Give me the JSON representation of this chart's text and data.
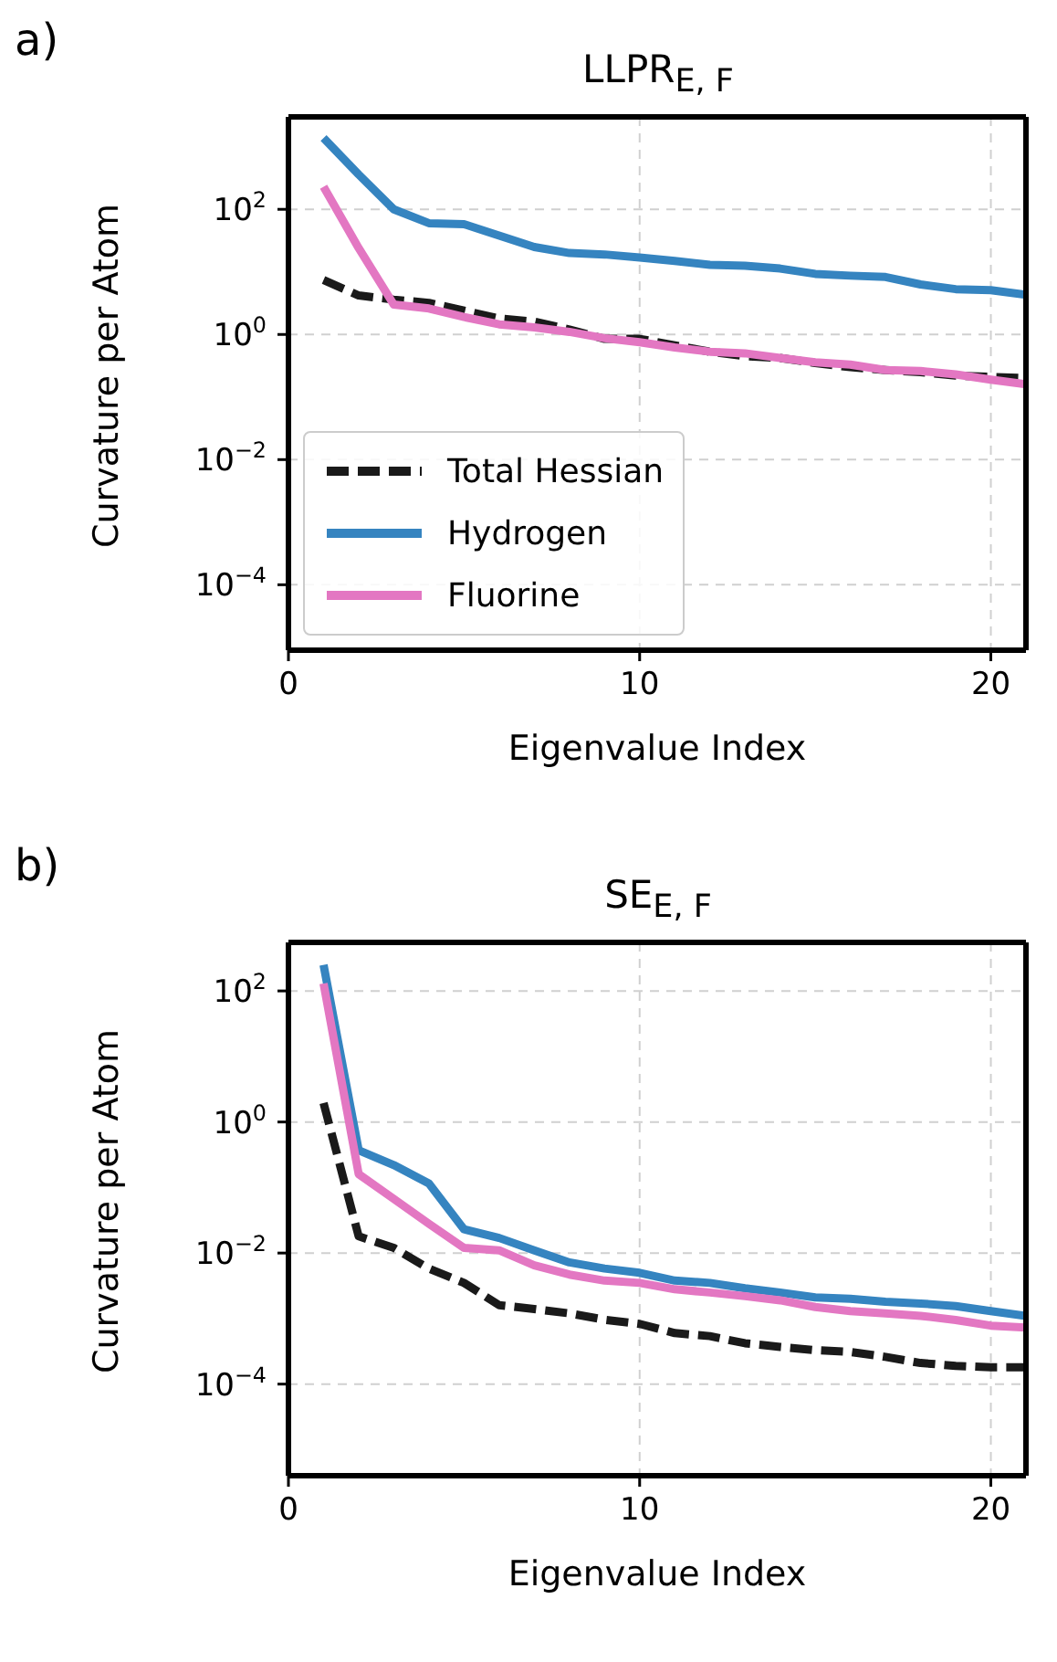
{
  "chart_data": [
    {
      "type": "line",
      "title": "LLPR$_{E, F}$",
      "annotations": [
        "a)"
      ],
      "xlabel": "Eigenvalue Index",
      "ylabel": "Curvature per Atom",
      "x": [
        1,
        2,
        3,
        4,
        5,
        6,
        7,
        8,
        9,
        10,
        11,
        12,
        13,
        14,
        15,
        16,
        17,
        18,
        19,
        20,
        21
      ],
      "series": [
        {
          "name": "Total Hessian",
          "color": "#1a1a1a",
          "line_style": "dashed",
          "values": [
            7.4,
            4.2,
            3.6,
            3.2,
            2.4,
            1.8,
            1.6,
            1.2,
            0.85,
            0.85,
            0.67,
            0.53,
            0.45,
            0.42,
            0.35,
            0.3,
            0.27,
            0.25,
            0.22,
            0.21,
            0.2
          ]
        },
        {
          "name": "Hydrogen",
          "color": "#3584c0",
          "line_style": "solid",
          "values": [
            1380,
            360,
            100,
            60,
            58,
            38,
            25,
            20,
            19,
            17,
            15,
            13,
            12.5,
            11.3,
            9.3,
            8.7,
            8.3,
            6.3,
            5.3,
            5.1,
            4.3
          ]
        },
        {
          "name": "Fluorine",
          "color": "#e377c2",
          "line_style": "solid",
          "values": [
            230,
            24,
            3,
            2.6,
            1.9,
            1.45,
            1.3,
            1.1,
            0.87,
            0.75,
            0.62,
            0.53,
            0.5,
            0.42,
            0.36,
            0.33,
            0.27,
            0.26,
            0.23,
            0.19,
            0.16
          ]
        }
      ],
      "log": "y",
      "xlim": [
        0,
        21
      ],
      "xticks": [
        0,
        10,
        20
      ],
      "ylim": [
        9e-06,
        3000
      ],
      "yticks": [
        {
          "value": 100,
          "label": "10$^{2}$"
        },
        {
          "value": 1,
          "label": "10$^{0}$"
        },
        {
          "value": 0.01,
          "label": "10$^{−2}$"
        },
        {
          "value": 0.0001,
          "label": "10$^{−4}$"
        }
      ],
      "grid": true,
      "legend": "bottom left",
      "marker": "none"
    },
    {
      "type": "line",
      "title": "SE$_{E, F}$",
      "annotations": [
        "b)"
      ],
      "xlabel": "Eigenvalue Index",
      "ylabel": "Curvature per Atom",
      "x": [
        1,
        2,
        3,
        4,
        5,
        6,
        7,
        8,
        9,
        10,
        11,
        12,
        13,
        14,
        15,
        16,
        17,
        18,
        19,
        20,
        21
      ],
      "series": [
        {
          "color": "#1a1a1a",
          "line_style": "dashed",
          "values": [
            1.95,
            0.018,
            0.012,
            0.0058,
            0.0035,
            0.0016,
            0.0014,
            0.0012,
            0.00096,
            0.00083,
            0.0006,
            0.00054,
            0.00042,
            0.00037,
            0.00033,
            0.00031,
            0.00026,
            0.00021,
            0.00019,
            0.00018,
            0.00018
          ]
        },
        {
          "color": "#3584c0",
          "line_style": "solid",
          "values": [
            250,
            0.37,
            0.22,
            0.115,
            0.023,
            0.017,
            0.011,
            0.0072,
            0.0058,
            0.005,
            0.0038,
            0.0035,
            0.0029,
            0.0025,
            0.0021,
            0.002,
            0.0018,
            0.0017,
            0.00155,
            0.0013,
            0.0011
          ]
        },
        {
          "color": "#e377c2",
          "line_style": "solid",
          "values": [
            130,
            0.16,
            0.067,
            0.028,
            0.012,
            0.011,
            0.0065,
            0.0047,
            0.0038,
            0.0035,
            0.0028,
            0.0025,
            0.0022,
            0.0019,
            0.0015,
            0.0013,
            0.0012,
            0.0011,
            0.00095,
            0.00078,
            0.00073
          ]
        }
      ],
      "log": "y",
      "xlim": [
        0,
        21
      ],
      "xticks": [
        0,
        10,
        20
      ],
      "ylim": [
        4e-06,
        550
      ],
      "yticks": [
        {
          "value": 100,
          "label": "10$^{2}$"
        },
        {
          "value": 1,
          "label": "10$^{0}$"
        },
        {
          "value": 0.01,
          "label": "10$^{−2}$"
        },
        {
          "value": 0.0001,
          "label": "10$^{−4}$"
        }
      ],
      "grid": true,
      "legend": false,
      "marker": "none"
    }
  ]
}
